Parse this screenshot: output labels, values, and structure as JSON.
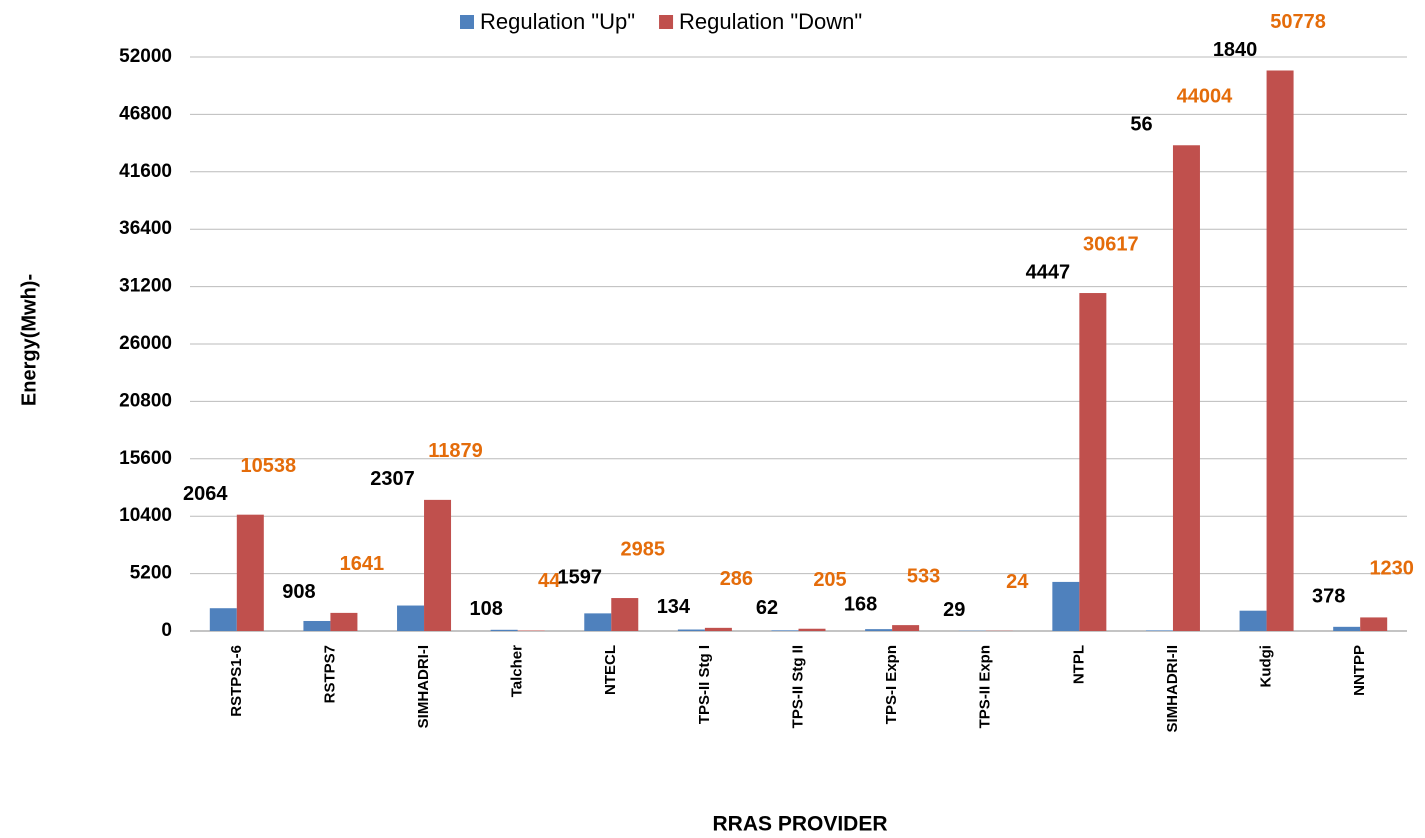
{
  "chart_data": {
    "type": "bar",
    "x_label": "RRAS PROVIDER",
    "y_label": "Energy(Mwh)-",
    "categories": [
      "RSTPS1-6",
      "RSTPS7",
      "SIMHADRI-I",
      "Talcher",
      "NTECL",
      "TPS-II Stg I",
      "TPS-II Stg II",
      "TPS-I Expn",
      "TPS-II Expn",
      "NTPL",
      "SIMHADRI-II",
      "Kudgi",
      "NNTPP"
    ],
    "series": [
      {
        "name": "Regulation \"Up\"",
        "color": "#4f81bd",
        "label_color": "#000000",
        "values": [
          2064,
          908,
          2307,
          108,
          1597,
          134,
          62,
          168,
          29,
          4447,
          56,
          1840,
          378
        ]
      },
      {
        "name": "Regulation \"Down\"",
        "color": "#c0504d",
        "label_color": "#e46c0a",
        "values": [
          10538,
          1641,
          11879,
          44,
          2985,
          286,
          205,
          533,
          24,
          30617,
          44004,
          50778,
          1230
        ]
      }
    ],
    "ylim": [
      0,
      52000
    ],
    "yticks": [
      0,
      5200,
      10400,
      15600,
      20800,
      26000,
      31200,
      36400,
      41600,
      46800,
      52000
    ],
    "grid": true,
    "legend": "top"
  }
}
